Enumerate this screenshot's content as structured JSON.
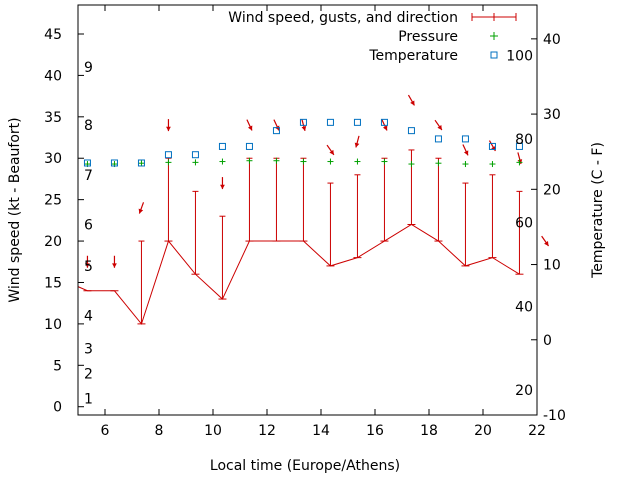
{
  "chart_data": {
    "type": "line",
    "xlabel": "Local time (Europe/Athens)",
    "ylabel_left": "Wind speed (kt - Beaufort)",
    "ylabel_right": "Temperature (C - F)",
    "xlim": [
      5,
      22
    ],
    "xticks": [
      6,
      8,
      10,
      12,
      14,
      16,
      18,
      20,
      22
    ],
    "ylim_left": [
      -1,
      48.5
    ],
    "yticks_left": [
      0,
      5,
      10,
      15,
      20,
      25,
      30,
      35,
      40,
      45
    ],
    "ylim_right": [
      -10,
      44.5
    ],
    "yticks_right": [
      -10,
      0,
      10,
      20,
      30,
      40
    ],
    "beaufort_labels": [
      {
        "label": "1",
        "kt": 1
      },
      {
        "label": "2",
        "kt": 4
      },
      {
        "label": "3",
        "kt": 7
      },
      {
        "label": "4",
        "kt": 11
      },
      {
        "label": "5",
        "kt": 17
      },
      {
        "label": "6",
        "kt": 22
      },
      {
        "label": "7",
        "kt": 28
      },
      {
        "label": "8",
        "kt": 34
      },
      {
        "label": "9",
        "kt": 41
      }
    ],
    "fahrenheit_labels": [
      {
        "label": "20",
        "celsius": -6.7
      },
      {
        "label": "40",
        "celsius": 4.4
      },
      {
        "label": "60",
        "celsius": 15.6
      },
      {
        "label": "80",
        "celsius": 26.7
      },
      {
        "label": "100",
        "celsius": 37.8
      }
    ],
    "legend": {
      "position": "top-right",
      "entries": [
        "Wind speed, gusts, and direction",
        "Pressure",
        "Temperature"
      ]
    },
    "colors": {
      "wind": "#cc0000",
      "pressure": "#00a000",
      "temperature": "#0070c0"
    },
    "series": [
      {
        "name": "Wind speed, gusts, and direction",
        "x": [
          5,
          5.35,
          6.35,
          7.35,
          8.35,
          9.35,
          10.35,
          11.35,
          12.35,
          13.35,
          14.35,
          15.35,
          16.35,
          17.35,
          18.35,
          19.35,
          20.35,
          21.35
        ],
        "speed": [
          14.5,
          14,
          14,
          10,
          20,
          16,
          13,
          20,
          20,
          20,
          17,
          18,
          20,
          22,
          20,
          17,
          18,
          16
        ],
        "gust": [
          null,
          null,
          null,
          20,
          30,
          26,
          23,
          30,
          30,
          30,
          27,
          28,
          30,
          31,
          30,
          27,
          28,
          26
        ]
      },
      {
        "name": "Wind direction",
        "arrows": [
          {
            "x": 5.35,
            "y": 17.5,
            "dir": 180
          },
          {
            "x": 6.35,
            "y": 17.5,
            "dir": 180
          },
          {
            "x": 7.35,
            "y": 24,
            "dir": 200
          },
          {
            "x": 8.35,
            "y": 34,
            "dir": 180
          },
          {
            "x": 10.35,
            "y": 27,
            "dir": 180
          },
          {
            "x": 11.35,
            "y": 34,
            "dir": 155
          },
          {
            "x": 12.35,
            "y": 34,
            "dir": 155
          },
          {
            "x": 13.35,
            "y": 34,
            "dir": 165
          },
          {
            "x": 14.35,
            "y": 31,
            "dir": 145
          },
          {
            "x": 15.35,
            "y": 32,
            "dir": 195
          },
          {
            "x": 16.35,
            "y": 34,
            "dir": 155
          },
          {
            "x": 17.35,
            "y": 37,
            "dir": 150
          },
          {
            "x": 18.35,
            "y": 34,
            "dir": 145
          },
          {
            "x": 19.35,
            "y": 31,
            "dir": 155
          },
          {
            "x": 20.35,
            "y": 31.5,
            "dir": 150
          },
          {
            "x": 21.35,
            "y": 30,
            "dir": 165
          },
          {
            "x": 22.3,
            "y": 20,
            "dir": 145
          }
        ]
      },
      {
        "name": "Pressure",
        "x": [
          5.35,
          6.35,
          7.35,
          8.35,
          9.35,
          10.35,
          11.35,
          12.35,
          13.35,
          14.35,
          15.35,
          16.35,
          17.35,
          18.35,
          19.35,
          20.35,
          21.35
        ],
        "y_left": [
          29.3,
          29.3,
          29.4,
          29.5,
          29.5,
          29.6,
          29.7,
          29.7,
          29.6,
          29.6,
          29.6,
          29.6,
          29.3,
          29.4,
          29.3,
          29.3,
          29.5
        ]
      },
      {
        "name": "Temperature",
        "x": [
          5.35,
          6.35,
          7.35,
          8.35,
          9.35,
          10.35,
          11.35,
          12.35,
          13.35,
          14.35,
          15.35,
          16.35,
          17.35,
          18.35,
          19.35,
          20.35,
          21.35
        ],
        "celsius": [
          23.5,
          23.5,
          23.5,
          24.6,
          24.6,
          25.7,
          25.7,
          27.8,
          28.9,
          28.9,
          28.9,
          28.9,
          27.8,
          26.7,
          26.7,
          25.7,
          25.7
        ]
      }
    ]
  }
}
